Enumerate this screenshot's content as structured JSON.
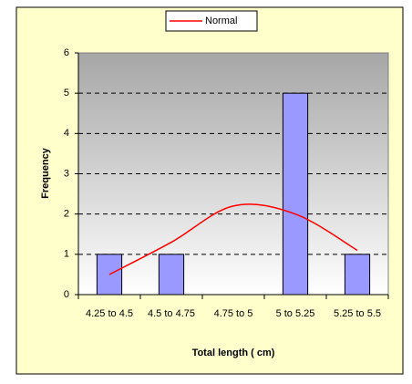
{
  "chart_data": {
    "type": "bar",
    "categories": [
      "4.25 to 4.5",
      "4.5 to 4.75",
      "4.75 to 5",
      "5 to 5.25",
      "5.25 to 5.5"
    ],
    "values": [
      1,
      1,
      0,
      5,
      1
    ],
    "color": "#9999ff",
    "series": [
      {
        "name": "Normal",
        "color": "#ff0000",
        "values": [
          0.5,
          1.3,
          2.2,
          2.0,
          1.1
        ]
      }
    ],
    "xlabel": "Total length ( cm)",
    "ylabel": "Frequency",
    "ylim": [
      0,
      6
    ],
    "yticks": [
      0,
      1,
      2,
      3,
      4,
      5,
      6
    ],
    "grid": true,
    "legend": "top"
  }
}
